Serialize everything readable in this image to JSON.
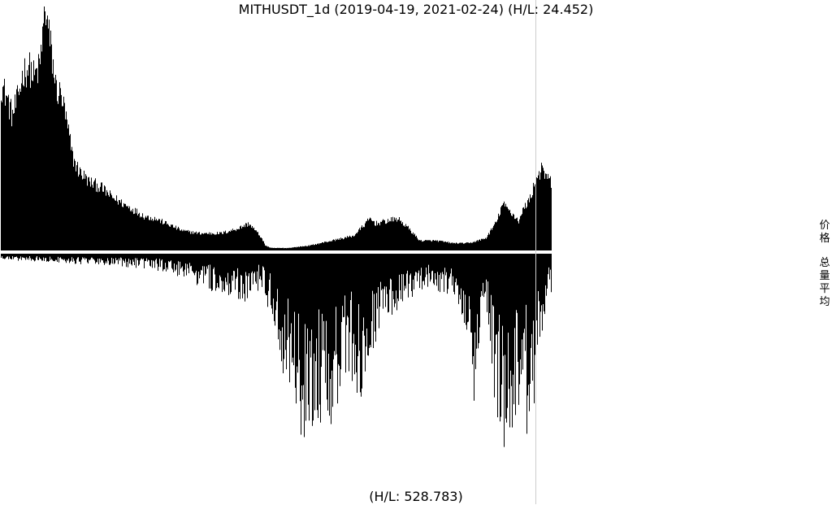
{
  "header": {
    "title": "MITHUSDT_1d (2019-04-19, 2021-02-24) (H/L: 24.452)"
  },
  "footer": {
    "volume_hl": "(H/L: 528.783)"
  },
  "side_labels": {
    "price": [
      "价",
      "格"
    ],
    "volume": [
      "总",
      "量",
      "平",
      "均"
    ]
  },
  "colors": {
    "bars": "#000000",
    "cursor_line": "#cccccc",
    "background": "#ffffff"
  },
  "chart_data": {
    "type": "bar",
    "start_date": "2019-04-19",
    "end_date": "2021-02-24",
    "series": [
      {
        "name": "价格",
        "panel": "top",
        "hl_ratio": 24.452,
        "profile": [
          [
            0,
            0.68
          ],
          [
            0.01,
            0.63
          ],
          [
            0.02,
            0.55
          ],
          [
            0.03,
            0.62
          ],
          [
            0.04,
            0.73
          ],
          [
            0.05,
            0.75
          ],
          [
            0.06,
            0.71
          ],
          [
            0.07,
            0.75
          ],
          [
            0.08,
            1.0
          ],
          [
            0.09,
            0.83
          ],
          [
            0.1,
            0.66
          ],
          [
            0.11,
            0.63
          ],
          [
            0.12,
            0.51
          ],
          [
            0.13,
            0.38
          ],
          [
            0.14,
            0.33
          ],
          [
            0.16,
            0.28
          ],
          [
            0.18,
            0.26
          ],
          [
            0.2,
            0.22
          ],
          [
            0.23,
            0.18
          ],
          [
            0.26,
            0.14
          ],
          [
            0.28,
            0.13
          ],
          [
            0.3,
            0.11
          ],
          [
            0.33,
            0.08
          ],
          [
            0.36,
            0.07
          ],
          [
            0.4,
            0.07
          ],
          [
            0.43,
            0.09
          ],
          [
            0.45,
            0.11
          ],
          [
            0.47,
            0.06
          ],
          [
            0.48,
            0.02
          ],
          [
            0.49,
            0.01
          ],
          [
            0.52,
            0.01
          ],
          [
            0.56,
            0.02
          ],
          [
            0.6,
            0.04
          ],
          [
            0.64,
            0.06
          ],
          [
            0.67,
            0.13
          ],
          [
            0.68,
            0.11
          ],
          [
            0.7,
            0.12
          ],
          [
            0.72,
            0.13
          ],
          [
            0.74,
            0.09
          ],
          [
            0.76,
            0.04
          ],
          [
            0.79,
            0.04
          ],
          [
            0.82,
            0.03
          ],
          [
            0.85,
            0.03
          ],
          [
            0.88,
            0.05
          ],
          [
            0.9,
            0.12
          ],
          [
            0.91,
            0.19
          ],
          [
            0.92,
            0.17
          ],
          [
            0.94,
            0.12
          ],
          [
            0.95,
            0.18
          ],
          [
            0.96,
            0.21
          ],
          [
            0.97,
            0.29
          ],
          [
            0.98,
            0.33
          ],
          [
            0.99,
            0.3
          ],
          [
            1.0,
            0.27
          ]
        ]
      },
      {
        "name": "总量平均",
        "panel": "bottom",
        "hl_ratio": 528.783,
        "profile": [
          [
            0,
            0.02
          ],
          [
            0.1,
            0.03
          ],
          [
            0.2,
            0.04
          ],
          [
            0.3,
            0.06
          ],
          [
            0.35,
            0.1
          ],
          [
            0.4,
            0.14
          ],
          [
            0.44,
            0.16
          ],
          [
            0.47,
            0.12
          ],
          [
            0.49,
            0.22
          ],
          [
            0.51,
            0.38
          ],
          [
            0.53,
            0.55
          ],
          [
            0.55,
            0.62
          ],
          [
            0.57,
            0.58
          ],
          [
            0.59,
            0.68
          ],
          [
            0.61,
            0.52
          ],
          [
            0.63,
            0.38
          ],
          [
            0.65,
            0.5
          ],
          [
            0.67,
            0.36
          ],
          [
            0.69,
            0.26
          ],
          [
            0.71,
            0.2
          ],
          [
            0.73,
            0.18
          ],
          [
            0.75,
            0.14
          ],
          [
            0.77,
            0.12
          ],
          [
            0.79,
            0.12
          ],
          [
            0.81,
            0.14
          ],
          [
            0.83,
            0.18
          ],
          [
            0.85,
            0.3
          ],
          [
            0.86,
            0.52
          ],
          [
            0.87,
            0.22
          ],
          [
            0.88,
            0.16
          ],
          [
            0.89,
            0.4
          ],
          [
            0.9,
            0.55
          ],
          [
            0.91,
            0.62
          ],
          [
            0.92,
            0.68
          ],
          [
            0.93,
            0.58
          ],
          [
            0.94,
            0.52
          ],
          [
            0.95,
            0.56
          ],
          [
            0.96,
            0.66
          ],
          [
            0.97,
            0.44
          ],
          [
            0.98,
            0.28
          ],
          [
            0.99,
            0.18
          ],
          [
            1.0,
            0.12
          ]
        ]
      }
    ]
  }
}
